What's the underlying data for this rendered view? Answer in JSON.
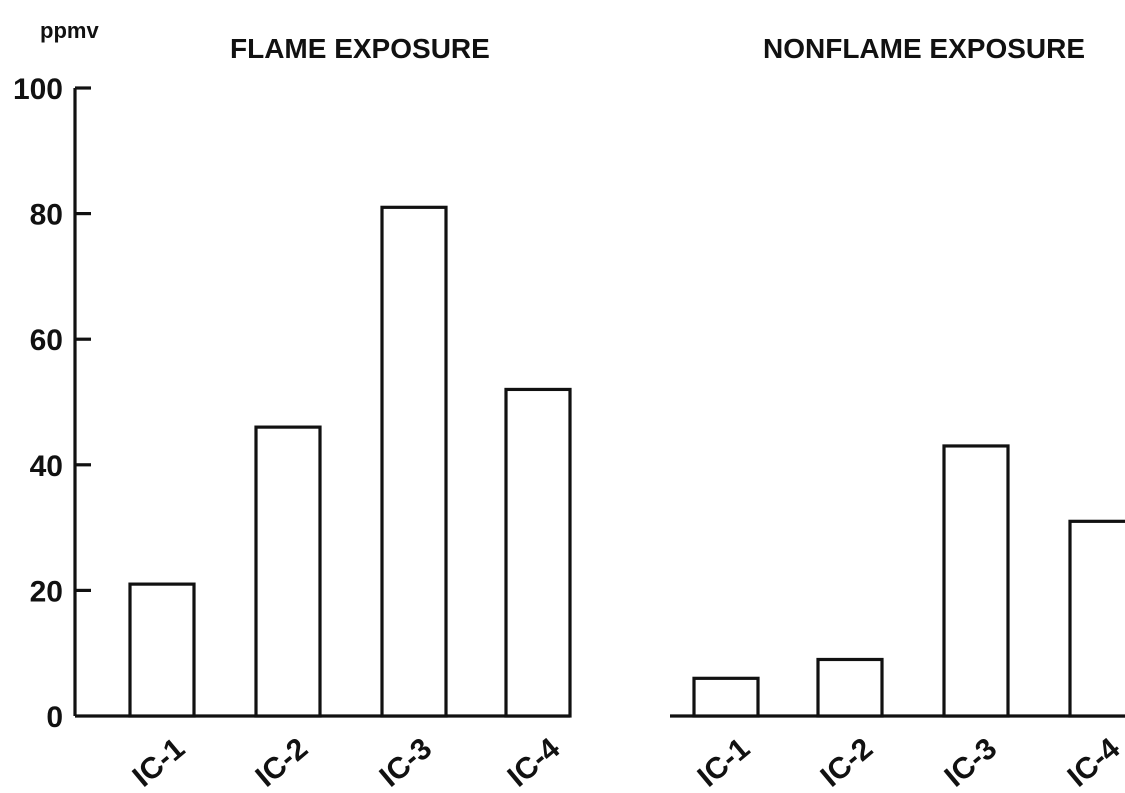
{
  "chart_data": [
    {
      "type": "bar",
      "title": "FLAME EXPOSURE",
      "ylabel": "ppmv",
      "categories": [
        "IC-1",
        "IC-2",
        "IC-3",
        "IC-4"
      ],
      "values": [
        21,
        46,
        81,
        52
      ],
      "ylim": [
        0,
        100
      ],
      "yticks": [
        "0",
        "20",
        "40",
        "60",
        "80",
        "100"
      ],
      "grid": false,
      "legend": "none"
    },
    {
      "type": "bar",
      "title": "NONFLAME EXPOSURE",
      "categories": [
        "IC-1",
        "IC-2",
        "IC-3",
        "IC-4"
      ],
      "values": [
        6,
        9,
        43,
        31
      ],
      "ylim": [
        0,
        100
      ],
      "grid": false,
      "legend": "none"
    }
  ],
  "colors": {
    "ink": "#111111",
    "bar_fill": "#ffffff"
  }
}
